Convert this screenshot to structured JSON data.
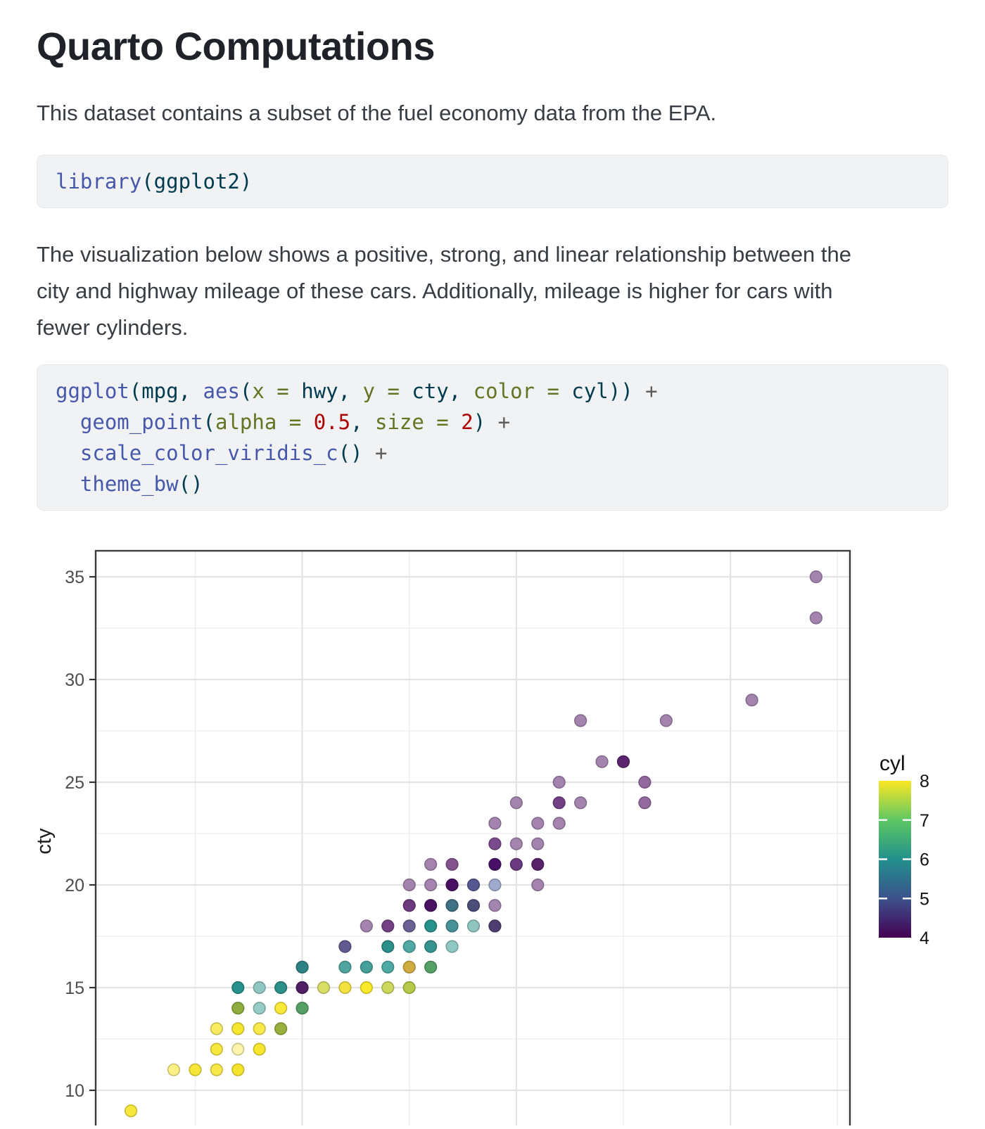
{
  "doc": {
    "title": "Quarto Computations",
    "intro": "This dataset contains a subset of the fuel economy data from the EPA.",
    "description_lines": [
      "The visualization below shows a positive, strong, and linear relationship between the",
      "city and highway mileage of these cars. Additionally, mileage is higher for cars with",
      "fewer cylinders."
    ]
  },
  "syntax_colors": {
    "fu": "#4758AB",
    "pl": "#003B4F",
    "at": "#657422",
    "dv": "#AD0000",
    "op": "#5E5E5E"
  },
  "code_blocks": [
    {
      "name": "library-call",
      "lines": [
        [
          {
            "t": "library",
            "c": "fu"
          },
          {
            "t": "(ggplot2)",
            "c": "pl"
          }
        ]
      ]
    },
    {
      "name": "ggplot-call",
      "lines": [
        [
          {
            "t": "ggplot",
            "c": "fu"
          },
          {
            "t": "(mpg, ",
            "c": "pl"
          },
          {
            "t": "aes",
            "c": "fu"
          },
          {
            "t": "(",
            "c": "pl"
          },
          {
            "t": "x = ",
            "c": "at"
          },
          {
            "t": "hwy",
            "c": "pl"
          },
          {
            "t": ", ",
            "c": "pl"
          },
          {
            "t": "y = ",
            "c": "at"
          },
          {
            "t": "cty",
            "c": "pl"
          },
          {
            "t": ", ",
            "c": "pl"
          },
          {
            "t": "color = ",
            "c": "at"
          },
          {
            "t": "cyl",
            "c": "pl"
          },
          {
            "t": ")) ",
            "c": "pl"
          },
          {
            "t": "+",
            "c": "op"
          }
        ],
        [
          {
            "t": "  ",
            "c": "pl"
          },
          {
            "t": "geom_point",
            "c": "fu"
          },
          {
            "t": "(",
            "c": "pl"
          },
          {
            "t": "alpha = ",
            "c": "at"
          },
          {
            "t": "0.5",
            "c": "dv"
          },
          {
            "t": ", ",
            "c": "pl"
          },
          {
            "t": "size = ",
            "c": "at"
          },
          {
            "t": "2",
            "c": "dv"
          },
          {
            "t": ") ",
            "c": "pl"
          },
          {
            "t": "+",
            "c": "op"
          }
        ],
        [
          {
            "t": "  ",
            "c": "pl"
          },
          {
            "t": "scale_color_viridis_c",
            "c": "fu"
          },
          {
            "t": "() ",
            "c": "pl"
          },
          {
            "t": "+",
            "c": "op"
          }
        ],
        [
          {
            "t": "  ",
            "c": "pl"
          },
          {
            "t": "theme_bw",
            "c": "fu"
          },
          {
            "t": "()",
            "c": "pl"
          }
        ]
      ]
    }
  ],
  "chart_data": {
    "type": "scatter",
    "x_var": "hwy",
    "y_var": "cty",
    "color_var": "cyl",
    "ylabel": "cty",
    "y_ticks": [
      35,
      30,
      25,
      20,
      15,
      10
    ],
    "y_minor_gridlines": [
      32.5,
      27.5,
      22.5,
      17.5,
      12.5
    ],
    "x_major_gridlines": [
      20,
      30,
      40
    ],
    "x_minor_gridlines": [
      15,
      25,
      35,
      45
    ],
    "xlim": [
      10.35,
      45.6
    ],
    "ylim": [
      7.7,
      36.3
    ],
    "grid": "on",
    "theme": "bw",
    "point_alpha": 0.5,
    "point_size": 2,
    "legend": {
      "position": "right",
      "title": "cyl",
      "tick_labels": [
        8,
        7,
        6,
        5,
        4
      ],
      "viridis_stops_top_to_bottom": [
        "#FDE725",
        "#5DC863",
        "#21908C",
        "#3B528B",
        "#440154"
      ]
    },
    "points": [
      [
        44,
        35,
        "#A484AF"
      ],
      [
        44,
        33,
        "#A484AF"
      ],
      [
        41,
        29,
        "#A484AF"
      ],
      [
        33,
        28,
        "#A484AF"
      ],
      [
        37,
        28,
        "#A484AF"
      ],
      [
        34,
        26,
        "#A484AF"
      ],
      [
        35,
        26,
        "#5C2470"
      ],
      [
        32,
        25,
        "#A484AF"
      ],
      [
        36,
        25,
        "#94699F"
      ],
      [
        30,
        24,
        "#A484AF"
      ],
      [
        32,
        24,
        "#744084"
      ],
      [
        33,
        24,
        "#A484AF"
      ],
      [
        36,
        24,
        "#94699F"
      ],
      [
        29,
        23,
        "#A484AF"
      ],
      [
        31,
        23,
        "#A484AF"
      ],
      [
        32,
        23,
        "#A484AF"
      ],
      [
        29,
        22,
        "#7B4A8C"
      ],
      [
        30,
        22,
        "#A585AF"
      ],
      [
        31,
        22,
        "#A484AF"
      ],
      [
        26,
        21,
        "#A484AF"
      ],
      [
        27,
        21,
        "#84538F"
      ],
      [
        29,
        21,
        "#471066"
      ],
      [
        30,
        21,
        "#6B3A80"
      ],
      [
        31,
        21,
        "#5A2269"
      ],
      [
        25,
        20,
        "#A484AF"
      ],
      [
        26,
        20,
        "#A484AF"
      ],
      [
        27,
        20,
        "#4A1063"
      ],
      [
        28,
        20,
        "#555992"
      ],
      [
        29,
        20,
        "#9FAACE"
      ],
      [
        31,
        20,
        "#A484AF"
      ],
      [
        25,
        19,
        "#6D3A80"
      ],
      [
        26,
        19,
        "#4A1161"
      ],
      [
        27,
        19,
        "#3E7183"
      ],
      [
        28,
        19,
        "#4A4E79"
      ],
      [
        29,
        19,
        "#A286B0"
      ],
      [
        23,
        18,
        "#A484AF"
      ],
      [
        24,
        18,
        "#744084"
      ],
      [
        25,
        18,
        "#6A6094"
      ],
      [
        26,
        18,
        "#27918C"
      ],
      [
        27,
        18,
        "#489199"
      ],
      [
        28,
        18,
        "#8EC5C0"
      ],
      [
        29,
        18,
        "#4F3D72"
      ],
      [
        22,
        17,
        "#605A90"
      ],
      [
        24,
        17,
        "#2B8F8A"
      ],
      [
        25,
        17,
        "#4FA9A4"
      ],
      [
        26,
        17,
        "#35938E"
      ],
      [
        27,
        17,
        "#8FC7C3"
      ],
      [
        20,
        16,
        "#2E8286"
      ],
      [
        22,
        16,
        "#4FA5A0"
      ],
      [
        23,
        16,
        "#45A09B"
      ],
      [
        24,
        16,
        "#4FA9A4"
      ],
      [
        25,
        16,
        "#D0AC41"
      ],
      [
        26,
        16,
        "#55A165"
      ],
      [
        17,
        15,
        "#27918C"
      ],
      [
        18,
        15,
        "#8FC7C3"
      ],
      [
        19,
        15,
        "#2B8F8A"
      ],
      [
        20,
        15,
        "#4F1E63"
      ],
      [
        21,
        15,
        "#D8DD66"
      ],
      [
        22,
        15,
        "#F3E23F"
      ],
      [
        23,
        15,
        "#F9E928"
      ],
      [
        24,
        15,
        "#CCD75B"
      ],
      [
        25,
        15,
        "#B5C84B"
      ],
      [
        17,
        14,
        "#8FAC3E"
      ],
      [
        18,
        14,
        "#97CBC5"
      ],
      [
        19,
        14,
        "#F9E837"
      ],
      [
        20,
        14,
        "#55A165"
      ],
      [
        16,
        13,
        "#F8EB60"
      ],
      [
        17,
        13,
        "#F7E62E"
      ],
      [
        18,
        13,
        "#F8E94C"
      ],
      [
        19,
        13,
        "#97B13C"
      ],
      [
        16,
        12,
        "#F8E73F"
      ],
      [
        17,
        12,
        "#FBF4AC"
      ],
      [
        18,
        12,
        "#F7E52F"
      ],
      [
        14,
        11,
        "#FAF083"
      ],
      [
        15,
        11,
        "#F7E636"
      ],
      [
        16,
        11,
        "#F8E84A"
      ],
      [
        17,
        11,
        "#F6E42C"
      ],
      [
        12,
        9,
        "#F8E73B"
      ]
    ]
  }
}
